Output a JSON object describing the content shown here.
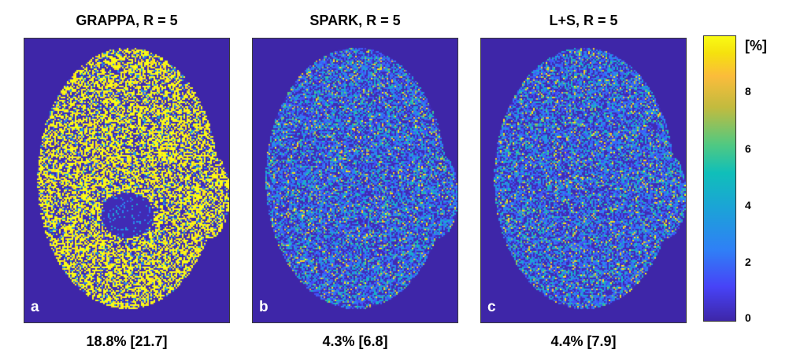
{
  "panels": [
    {
      "title": "GRAPPA, R = 5",
      "letter": "a",
      "caption": "18.8% [21.7]",
      "error_level": "high"
    },
    {
      "title": "SPARK, R = 5",
      "letter": "b",
      "caption": "4.3% [6.8]",
      "error_level": "low"
    },
    {
      "title": "L+S, R = 5",
      "letter": "c",
      "caption": "4.4% [7.9]",
      "error_level": "low"
    }
  ],
  "colorbar": {
    "unit": "[%]",
    "ticks": [
      "8",
      "6",
      "4",
      "2",
      "0"
    ],
    "colormap": "parula",
    "range": [
      0,
      10
    ]
  },
  "colors": {
    "background_map": "#3e26a8",
    "max_color": "#f9fb14"
  }
}
